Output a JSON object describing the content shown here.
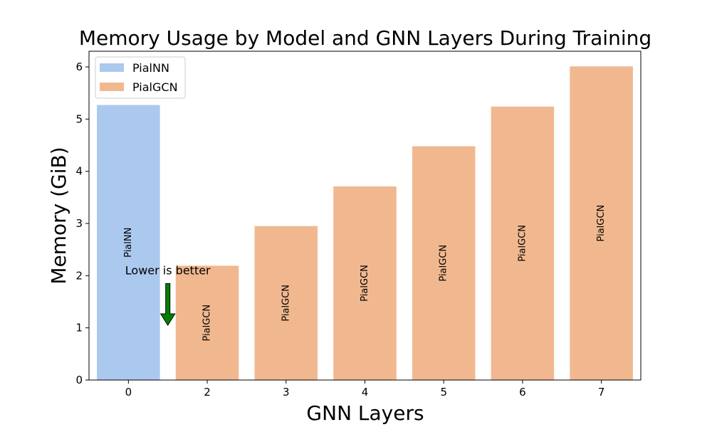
{
  "chart_data": {
    "type": "bar",
    "title": "Memory Usage by Model and GNN Layers During Training",
    "xlabel": "GNN Layers",
    "ylabel": "Memory (GiB)",
    "ylim": [
      0,
      6.3
    ],
    "yticks": [
      0,
      1,
      2,
      3,
      4,
      5,
      6
    ],
    "categories": [
      "0",
      "2",
      "3",
      "4",
      "5",
      "6",
      "7"
    ],
    "bars": [
      {
        "category": "0",
        "model": "PialNN",
        "value": 5.27
      },
      {
        "category": "2",
        "model": "PialGCN",
        "value": 2.19
      },
      {
        "category": "3",
        "model": "PialGCN",
        "value": 2.95
      },
      {
        "category": "4",
        "model": "PialGCN",
        "value": 3.71
      },
      {
        "category": "5",
        "model": "PialGCN",
        "value": 4.48
      },
      {
        "category": "6",
        "model": "PialGCN",
        "value": 5.24
      },
      {
        "category": "7",
        "model": "PialGCN",
        "value": 6.01
      }
    ],
    "series": [
      {
        "name": "PialNN",
        "color": "#abc9ee"
      },
      {
        "name": "PialGCN",
        "color": "#f1b890"
      }
    ],
    "legend": {
      "placement": "top-left"
    },
    "grid": false,
    "annotation": {
      "text": "Lower is better",
      "arrow": "down",
      "arrow_color": "#008000",
      "x_between_categories": [
        "0",
        "2"
      ],
      "y_text": 2.0,
      "y_arrow_top": 1.85,
      "y_arrow_bottom": 1.05
    }
  }
}
